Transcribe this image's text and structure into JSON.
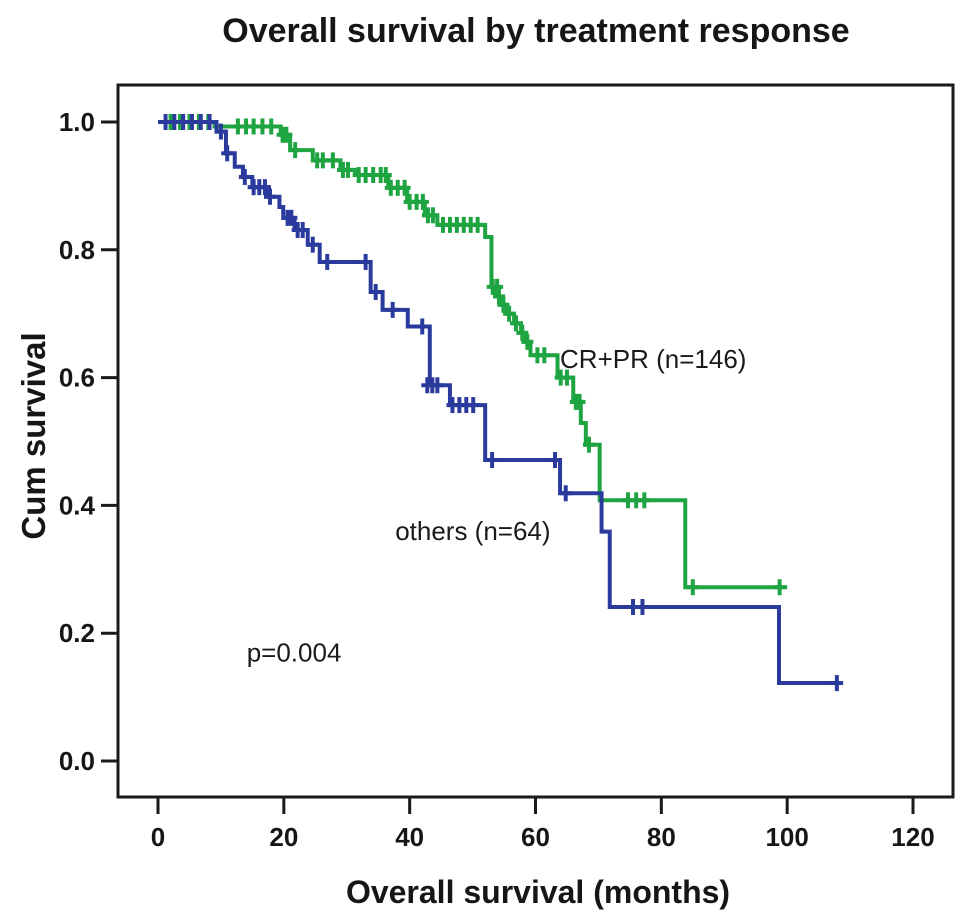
{
  "chart_data": {
    "type": "line",
    "subtype": "kaplan-meier-step",
    "title": "Overall survival by treatment response",
    "xlabel": "Overall survival (months)",
    "ylabel": "Cum survival",
    "x_ticks": [
      0,
      20,
      40,
      60,
      80,
      100,
      120
    ],
    "x_tick_labels": [
      "0",
      "20",
      "40",
      "60",
      "80",
      "100",
      "120"
    ],
    "y_ticks": [
      0.0,
      0.2,
      0.4,
      0.6,
      0.8,
      1.0
    ],
    "y_tick_labels": [
      "0.0",
      "0.2",
      "0.4",
      "0.6",
      "0.8",
      "1.0"
    ],
    "xlim": [
      -6.4,
      126.4
    ],
    "ylim": [
      -0.056,
      1.057
    ],
    "grid": false,
    "frame": true,
    "legend_position": "inline-labels",
    "colors": {
      "cr_pr": "#1EA440",
      "others": "#2B3B9D",
      "frame": "#1a1a1a",
      "text": "#161616"
    },
    "series": [
      {
        "name": "CR+PR (n=146)",
        "color": "#1EA440",
        "end_month": 100,
        "steps": [
          [
            0,
            1.0
          ],
          [
            9,
            0.993
          ],
          [
            19.5,
            0.98
          ],
          [
            21,
            0.956
          ],
          [
            24.6,
            0.94
          ],
          [
            29,
            0.925
          ],
          [
            31.3,
            0.917
          ],
          [
            36.6,
            0.897
          ],
          [
            39.6,
            0.875
          ],
          [
            42.4,
            0.854
          ],
          [
            44.4,
            0.839
          ],
          [
            52,
            0.82
          ],
          [
            53,
            0.742
          ],
          [
            53.6,
            0.727
          ],
          [
            54.5,
            0.714
          ],
          [
            55.4,
            0.7
          ],
          [
            56.6,
            0.685
          ],
          [
            57.7,
            0.67
          ],
          [
            58.4,
            0.656
          ],
          [
            59.2,
            0.635
          ],
          [
            63.5,
            0.6
          ],
          [
            66,
            0.562
          ],
          [
            67.2,
            0.529
          ],
          [
            68,
            0.495
          ],
          [
            70.2,
            0.408
          ],
          [
            83.8,
            0.272
          ]
        ],
        "censors": [
          [
            2,
            1.0
          ],
          [
            3.5,
            1.0
          ],
          [
            5,
            1.0
          ],
          [
            6.5,
            1.0
          ],
          [
            8,
            1.0
          ],
          [
            12.7,
            0.993
          ],
          [
            14,
            0.993
          ],
          [
            15.2,
            0.993
          ],
          [
            16.6,
            0.993
          ],
          [
            18,
            0.993
          ],
          [
            19.8,
            0.98
          ],
          [
            20.4,
            0.98
          ],
          [
            21.8,
            0.956
          ],
          [
            25.3,
            0.94
          ],
          [
            26.2,
            0.94
          ],
          [
            27.8,
            0.94
          ],
          [
            29.4,
            0.925
          ],
          [
            30.2,
            0.925
          ],
          [
            31.9,
            0.917
          ],
          [
            33,
            0.917
          ],
          [
            34.2,
            0.917
          ],
          [
            35.4,
            0.917
          ],
          [
            36.2,
            0.917
          ],
          [
            37,
            0.897
          ],
          [
            38.1,
            0.897
          ],
          [
            39.2,
            0.897
          ],
          [
            40,
            0.875
          ],
          [
            41.1,
            0.875
          ],
          [
            42.1,
            0.875
          ],
          [
            42.9,
            0.854
          ],
          [
            43.7,
            0.854
          ],
          [
            45.3,
            0.839
          ],
          [
            46.4,
            0.839
          ],
          [
            47.5,
            0.839
          ],
          [
            48.6,
            0.839
          ],
          [
            49.7,
            0.839
          ],
          [
            50.8,
            0.839
          ],
          [
            53.2,
            0.742
          ],
          [
            53.9,
            0.742
          ],
          [
            54.2,
            0.727
          ],
          [
            54.9,
            0.714
          ],
          [
            55.8,
            0.7
          ],
          [
            56.9,
            0.685
          ],
          [
            57.9,
            0.67
          ],
          [
            58.7,
            0.656
          ],
          [
            60.3,
            0.635
          ],
          [
            61.4,
            0.635
          ],
          [
            64,
            0.6
          ],
          [
            65,
            0.6
          ],
          [
            66.4,
            0.562
          ],
          [
            67,
            0.562
          ],
          [
            68.5,
            0.495
          ],
          [
            74.7,
            0.408
          ],
          [
            76,
            0.408
          ],
          [
            77.3,
            0.408
          ],
          [
            85,
            0.272
          ],
          [
            98.8,
            0.272
          ]
        ]
      },
      {
        "name": "others (n=64)",
        "color": "#2B3B9D",
        "end_month": 108.9,
        "steps": [
          [
            0,
            1.0
          ],
          [
            9.3,
            0.985
          ],
          [
            10.8,
            0.951
          ],
          [
            12.2,
            0.93
          ],
          [
            13.5,
            0.914
          ],
          [
            15,
            0.898
          ],
          [
            17.4,
            0.883
          ],
          [
            19.3,
            0.867
          ],
          [
            19.9,
            0.85
          ],
          [
            21.7,
            0.831
          ],
          [
            23.8,
            0.808
          ],
          [
            25.7,
            0.781
          ],
          [
            33.8,
            0.734
          ],
          [
            35.7,
            0.706
          ],
          [
            39.7,
            0.68
          ],
          [
            43.2,
            0.588
          ],
          [
            46.4,
            0.557
          ],
          [
            52,
            0.471
          ],
          [
            63.9,
            0.419
          ],
          [
            70.5,
            0.359
          ],
          [
            71.8,
            0.241
          ],
          [
            98.7,
            0.122
          ]
        ],
        "censors": [
          [
            1.2,
            1.0
          ],
          [
            2.6,
            1.0
          ],
          [
            4,
            1.0
          ],
          [
            5.4,
            1.0
          ],
          [
            6.8,
            1.0
          ],
          [
            8.2,
            1.0
          ],
          [
            10,
            0.985
          ],
          [
            11,
            0.951
          ],
          [
            13.8,
            0.914
          ],
          [
            15.2,
            0.898
          ],
          [
            16.1,
            0.898
          ],
          [
            17,
            0.898
          ],
          [
            17.8,
            0.883
          ],
          [
            20.6,
            0.85
          ],
          [
            21.2,
            0.85
          ],
          [
            22.2,
            0.831
          ],
          [
            23,
            0.831
          ],
          [
            24.6,
            0.808
          ],
          [
            26.9,
            0.781
          ],
          [
            33,
            0.781
          ],
          [
            34.6,
            0.734
          ],
          [
            37.3,
            0.706
          ],
          [
            42,
            0.68
          ],
          [
            42.8,
            0.588
          ],
          [
            43.6,
            0.588
          ],
          [
            44.4,
            0.588
          ],
          [
            46.8,
            0.557
          ],
          [
            47.9,
            0.557
          ],
          [
            49,
            0.557
          ],
          [
            50.1,
            0.557
          ],
          [
            53.1,
            0.471
          ],
          [
            63.1,
            0.471
          ],
          [
            64.8,
            0.419
          ],
          [
            75.5,
            0.241
          ],
          [
            77,
            0.241
          ],
          [
            107.9,
            0.122
          ]
        ]
      }
    ],
    "annotations": [
      {
        "id": "series-label-crpr",
        "text": "CR+PR (n=146)",
        "month": 63.9,
        "surv": 0.615
      },
      {
        "id": "series-label-others",
        "text": "others (n=64)",
        "month": 37.7,
        "surv": 0.346
      },
      {
        "id": "p-value-label",
        "text": "p=0.004",
        "month": 14.1,
        "surv": 0.156
      }
    ]
  }
}
